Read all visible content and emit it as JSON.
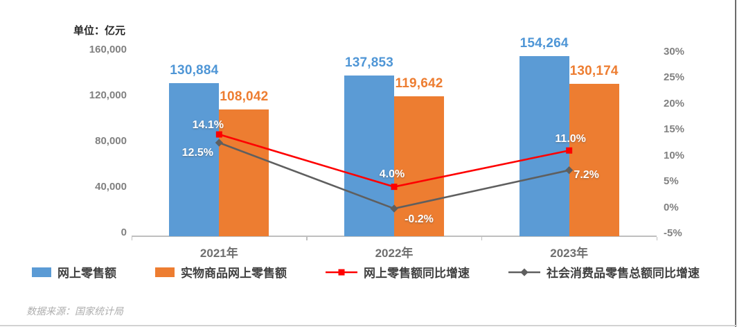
{
  "unit_label": "单位：亿元",
  "source_note": "数据来源：国家统计局",
  "chart_data": {
    "type": "bar",
    "subtype": "bar-line-combo",
    "categories": [
      "2021年",
      "2022年",
      "2023年"
    ],
    "bar_series": [
      {
        "name": "网上零售额",
        "color": "#5B9BD5",
        "label_color": "#4F96D6",
        "values": [
          130884,
          137853,
          154264
        ],
        "labels": [
          "130,884",
          "137,853",
          "154,264"
        ]
      },
      {
        "name": "实物商品网上零售额",
        "color": "#ED7D31",
        "label_color": "#ED7D31",
        "values": [
          108042,
          119642,
          130174
        ],
        "labels": [
          "108,042",
          "119,642",
          "130,174"
        ]
      }
    ],
    "line_series": [
      {
        "name": "网上零售额同比增速",
        "color": "#FE0000",
        "marker": "square",
        "values": [
          14.1,
          4.0,
          11.0
        ],
        "labels": [
          "14.1%",
          "4.0%",
          "11.0%"
        ]
      },
      {
        "name": "社会消费品零售总额同比增速",
        "color": "#5F5F5F",
        "marker": "diamond",
        "values": [
          12.5,
          -0.2,
          7.2
        ],
        "labels": [
          "12.5%",
          "-0.2%",
          "7.2%"
        ]
      }
    ],
    "left_axis": {
      "title": "单位：亿元",
      "min": 0,
      "max": 160000,
      "ticks": [
        {
          "label": "0",
          "value": 0
        },
        {
          "label": "40,000",
          "value": 40000
        },
        {
          "label": "80,000",
          "value": 80000
        },
        {
          "label": "120,000",
          "value": 120000
        },
        {
          "label": "160,000",
          "value": 160000
        }
      ]
    },
    "right_axis": {
      "min": -5,
      "max": 30,
      "ticks": [
        {
          "label": "-5%",
          "value": -5
        },
        {
          "label": "0%",
          "value": 0
        },
        {
          "label": "5%",
          "value": 5
        },
        {
          "label": "10%",
          "value": 10
        },
        {
          "label": "15%",
          "value": 15
        },
        {
          "label": "20%",
          "value": 20
        },
        {
          "label": "25%",
          "value": 25
        },
        {
          "label": "30%",
          "value": 30
        }
      ]
    },
    "legend_position": "bottom",
    "grid": false
  }
}
